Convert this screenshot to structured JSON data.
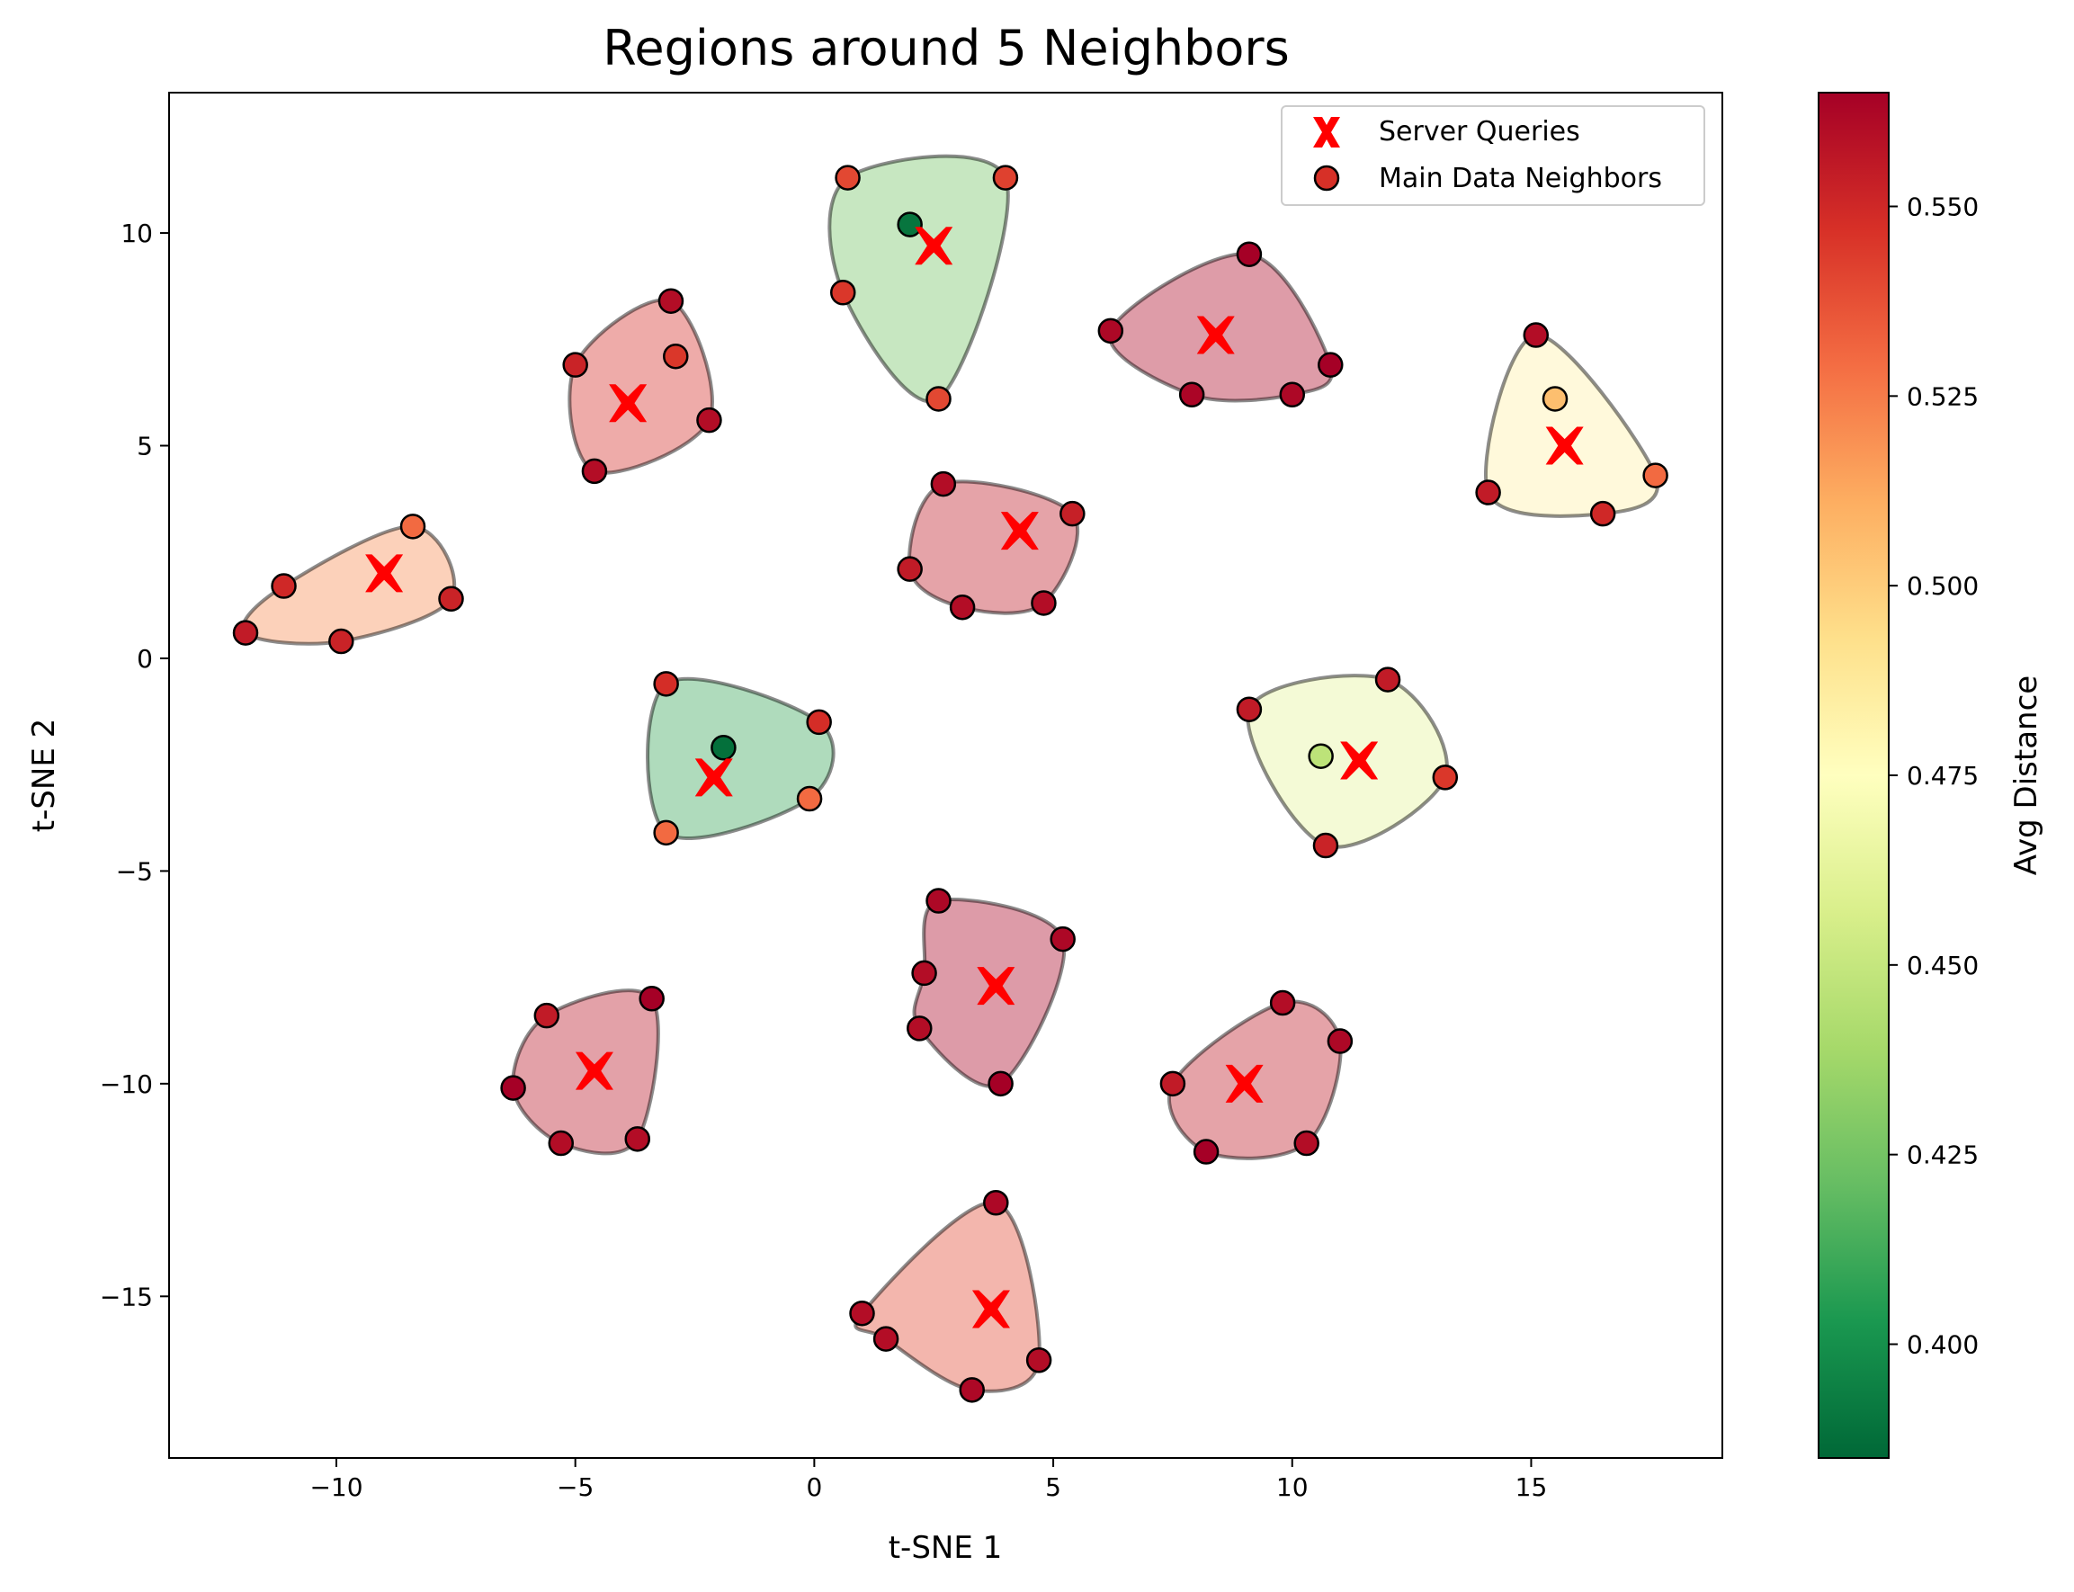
{
  "chart_data": {
    "type": "scatter",
    "title": "Regions around 5 Neighbors",
    "xlabel": "t-SNE 1",
    "ylabel": "t-SNE 2",
    "xlim": [
      -13.5,
      19
    ],
    "ylim": [
      -18.8,
      13.3
    ],
    "xticks": [
      -10,
      -5,
      0,
      5,
      10,
      15
    ],
    "xtick_labels": [
      "−10",
      "−5",
      "0",
      "5",
      "10",
      "15"
    ],
    "yticks": [
      -15,
      -10,
      -5,
      0,
      5,
      10
    ],
    "ytick_labels": [
      "−15",
      "−10",
      "−5",
      "0",
      "5",
      "10"
    ],
    "grid": false,
    "legend_position": "top-right",
    "legend": [
      {
        "label": "Server Queries",
        "marker": "X",
        "color": "#ff0000"
      },
      {
        "label": "Main Data Neighbors",
        "marker": "o",
        "color": "#d73027"
      }
    ],
    "colorbar": {
      "label": "Avg Distance",
      "min": 0.385,
      "max": 0.565,
      "cmap": "RdYlGn_r",
      "ticks": [
        0.4,
        0.425,
        0.45,
        0.475,
        0.5,
        0.525,
        0.55
      ],
      "tick_labels": [
        "0.400",
        "0.425",
        "0.450",
        "0.475",
        "0.500",
        "0.525",
        "0.550"
      ]
    },
    "regions": [
      {
        "query": [
          2.5,
          9.7
        ],
        "region_value": 0.425,
        "neighbors": [
          {
            "x": 0.7,
            "y": 11.3,
            "d": 0.54
          },
          {
            "x": 4.0,
            "y": 11.3,
            "d": 0.542
          },
          {
            "x": 2.0,
            "y": 10.2,
            "d": 0.39
          },
          {
            "x": 0.6,
            "y": 8.6,
            "d": 0.545
          },
          {
            "x": 2.6,
            "y": 6.1,
            "d": 0.54
          }
        ]
      },
      {
        "query": [
          8.4,
          7.6
        ],
        "region_value": 0.562,
        "neighbors": [
          {
            "x": 9.1,
            "y": 9.5,
            "d": 0.565
          },
          {
            "x": 6.2,
            "y": 7.7,
            "d": 0.562
          },
          {
            "x": 10.8,
            "y": 6.9,
            "d": 0.565
          },
          {
            "x": 7.9,
            "y": 6.2,
            "d": 0.563
          },
          {
            "x": 10.0,
            "y": 6.2,
            "d": 0.562
          }
        ]
      },
      {
        "query": [
          -3.9,
          6.0
        ],
        "region_value": 0.548,
        "neighbors": [
          {
            "x": -3.0,
            "y": 8.4,
            "d": 0.56
          },
          {
            "x": -5.0,
            "y": 6.9,
            "d": 0.552
          },
          {
            "x": -2.9,
            "y": 7.1,
            "d": 0.545
          },
          {
            "x": -2.2,
            "y": 5.6,
            "d": 0.56
          },
          {
            "x": -4.6,
            "y": 4.4,
            "d": 0.56
          }
        ]
      },
      {
        "query": [
          15.7,
          5.0
        ],
        "region_value": 0.484,
        "neighbors": [
          {
            "x": 15.1,
            "y": 7.6,
            "d": 0.56
          },
          {
            "x": 15.5,
            "y": 6.1,
            "d": 0.505
          },
          {
            "x": 17.6,
            "y": 4.3,
            "d": 0.53
          },
          {
            "x": 14.1,
            "y": 3.9,
            "d": 0.555
          },
          {
            "x": 16.5,
            "y": 3.4,
            "d": 0.55
          }
        ]
      },
      {
        "query": [
          4.3,
          3.0
        ],
        "region_value": 0.556,
        "neighbors": [
          {
            "x": 2.7,
            "y": 4.1,
            "d": 0.56
          },
          {
            "x": 5.4,
            "y": 3.4,
            "d": 0.553
          },
          {
            "x": 2.0,
            "y": 2.1,
            "d": 0.555
          },
          {
            "x": 3.1,
            "y": 1.2,
            "d": 0.56
          },
          {
            "x": 4.8,
            "y": 1.3,
            "d": 0.56
          }
        ]
      },
      {
        "query": [
          -9.0,
          2.0
        ],
        "region_value": 0.52,
        "neighbors": [
          {
            "x": -8.4,
            "y": 3.1,
            "d": 0.53
          },
          {
            "x": -11.1,
            "y": 1.7,
            "d": 0.55
          },
          {
            "x": -7.6,
            "y": 1.4,
            "d": 0.552
          },
          {
            "x": -11.9,
            "y": 0.6,
            "d": 0.555
          },
          {
            "x": -9.9,
            "y": 0.4,
            "d": 0.552
          }
        ]
      },
      {
        "query": [
          -2.1,
          -2.8
        ],
        "region_value": 0.41,
        "neighbors": [
          {
            "x": -3.1,
            "y": -0.6,
            "d": 0.548
          },
          {
            "x": 0.1,
            "y": -1.5,
            "d": 0.548
          },
          {
            "x": -1.9,
            "y": -2.1,
            "d": 0.388
          },
          {
            "x": -0.1,
            "y": -3.3,
            "d": 0.53
          },
          {
            "x": -3.1,
            "y": -4.1,
            "d": 0.53
          }
        ]
      },
      {
        "query": [
          11.4,
          -2.4
        ],
        "region_value": 0.462,
        "neighbors": [
          {
            "x": 12.0,
            "y": -0.5,
            "d": 0.555
          },
          {
            "x": 9.1,
            "y": -1.2,
            "d": 0.555
          },
          {
            "x": 10.6,
            "y": -2.3,
            "d": 0.447
          },
          {
            "x": 13.2,
            "y": -2.8,
            "d": 0.545
          },
          {
            "x": 10.7,
            "y": -4.4,
            "d": 0.552
          }
        ]
      },
      {
        "query": [
          3.8,
          -7.7
        ],
        "region_value": 0.563,
        "neighbors": [
          {
            "x": 2.6,
            "y": -5.7,
            "d": 0.562
          },
          {
            "x": 5.2,
            "y": -6.6,
            "d": 0.562
          },
          {
            "x": 2.3,
            "y": -7.4,
            "d": 0.56
          },
          {
            "x": 2.2,
            "y": -8.7,
            "d": 0.56
          },
          {
            "x": 3.9,
            "y": -10.0,
            "d": 0.565
          }
        ]
      },
      {
        "query": [
          -4.6,
          -9.7
        ],
        "region_value": 0.558,
        "neighbors": [
          {
            "x": -3.4,
            "y": -8.0,
            "d": 0.565
          },
          {
            "x": -5.6,
            "y": -8.4,
            "d": 0.555
          },
          {
            "x": -6.3,
            "y": -10.1,
            "d": 0.565
          },
          {
            "x": -5.3,
            "y": -11.4,
            "d": 0.56
          },
          {
            "x": -3.7,
            "y": -11.3,
            "d": 0.56
          }
        ]
      },
      {
        "query": [
          9.0,
          -10.0
        ],
        "region_value": 0.556,
        "neighbors": [
          {
            "x": 9.8,
            "y": -8.1,
            "d": 0.56
          },
          {
            "x": 11.0,
            "y": -9.0,
            "d": 0.562
          },
          {
            "x": 7.5,
            "y": -10.0,
            "d": 0.555
          },
          {
            "x": 8.2,
            "y": -11.6,
            "d": 0.565
          },
          {
            "x": 10.3,
            "y": -11.4,
            "d": 0.56
          }
        ]
      },
      {
        "query": [
          3.7,
          -15.3
        ],
        "region_value": 0.54,
        "neighbors": [
          {
            "x": 3.8,
            "y": -12.8,
            "d": 0.562
          },
          {
            "x": 1.0,
            "y": -15.4,
            "d": 0.56
          },
          {
            "x": 1.5,
            "y": -16.0,
            "d": 0.56
          },
          {
            "x": 4.7,
            "y": -16.5,
            "d": 0.56
          },
          {
            "x": 3.3,
            "y": -17.2,
            "d": 0.562
          }
        ]
      }
    ]
  }
}
